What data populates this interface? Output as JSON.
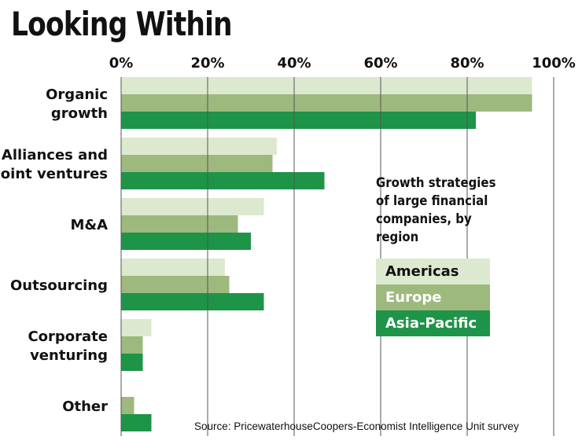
{
  "title": "Looking Within",
  "legend_title": "Growth strategies of large financial companies, by region",
  "source": "Source: PricewaterhouseCoopers-Economist Intelligence Unit survey",
  "colors": {
    "Americas": "#dde9cf",
    "Europe": "#9db97d",
    "Asia-Pacific": "#1e9448",
    "gridline": "#555555"
  },
  "chart_data": {
    "type": "bar",
    "orientation": "horizontal",
    "title": "Looking Within",
    "categories": [
      [
        "Organic",
        "growth"
      ],
      [
        "Alliances and",
        "joint ventures"
      ],
      [
        "M&A"
      ],
      [
        "Outsourcing"
      ],
      [
        "Corporate",
        "venturing"
      ],
      [
        "Other"
      ]
    ],
    "series": [
      {
        "name": "Americas",
        "values": [
          95,
          36,
          33,
          24,
          7,
          0
        ]
      },
      {
        "name": "Europe",
        "values": [
          95,
          35,
          27,
          25,
          5,
          3
        ]
      },
      {
        "name": "Asia-Pacific",
        "values": [
          82,
          47,
          30,
          33,
          5,
          7
        ]
      }
    ],
    "xlim": [
      0,
      100
    ],
    "x_ticks": [
      "0%",
      "20%",
      "40%",
      "60%",
      "80%",
      "100%"
    ],
    "x_tick_values": [
      0,
      20,
      40,
      60,
      80,
      100
    ],
    "axis_position": "top",
    "grid": true,
    "legend_placement": "right"
  }
}
